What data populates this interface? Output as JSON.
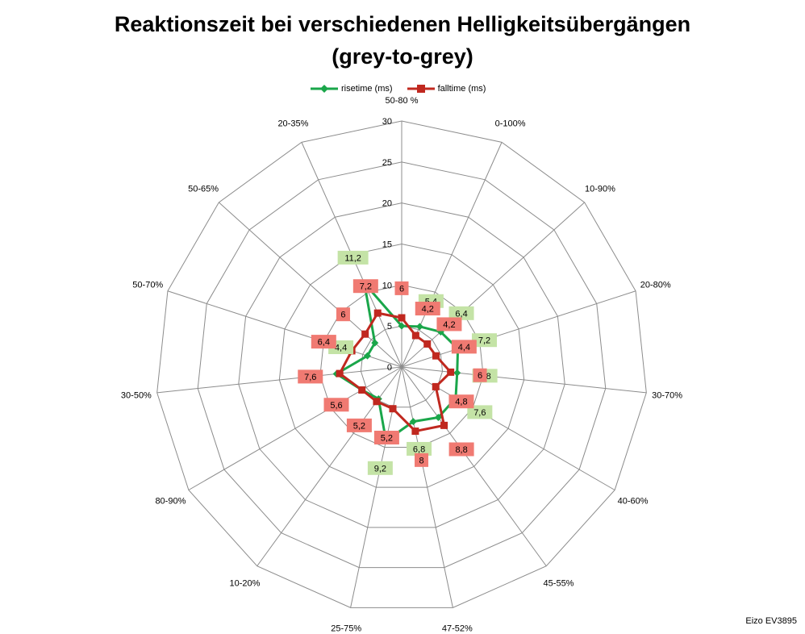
{
  "chart_data": {
    "type": "radar",
    "title": "Reaktionszeit bei verschiedenen Helligkeitsübergängen",
    "subtitle": "(grey-to-grey)",
    "categories": [
      "50-80 %",
      "0-100%",
      "10-90%",
      "20-80%",
      "30-70%",
      "40-60%",
      "45-55%",
      "47-52%",
      "25-75%",
      "10-20%",
      "80-90%",
      "30-50%",
      "50-70%",
      "50-65%",
      "20-35%"
    ],
    "rlim": [
      0,
      30
    ],
    "r_ticks": [
      "0",
      "5",
      "10",
      "15",
      "20",
      "25",
      "30"
    ],
    "grid": true,
    "legend_position": "top",
    "series": [
      {
        "name": "risetime (ms)",
        "color": "#1aa64a",
        "label_bg": "#c4e3a6",
        "values": [
          5.0,
          5.4,
          6.4,
          7.2,
          6.8,
          7.6,
          7.6,
          6.8,
          9.2,
          4.8,
          5.6,
          8.0,
          4.4,
          4.4,
          11.2
        ],
        "data_labels": [
          "",
          "5,4",
          "6,4",
          "7,2",
          "6,8",
          "7,6",
          "",
          "6,8",
          "9,2",
          "",
          "",
          "",
          "4,4",
          "",
          "11,2"
        ]
      },
      {
        "name": "falltime (ms)",
        "color": "#c0281f",
        "label_bg": "#f07a72",
        "values": [
          6.0,
          4.2,
          4.2,
          4.4,
          6.0,
          4.8,
          8.8,
          8.0,
          5.2,
          5.2,
          5.6,
          7.6,
          6.4,
          6.0,
          7.2
        ],
        "data_labels": [
          "6",
          "4,2",
          "4,2",
          "4,4",
          "6",
          "4,8",
          "8,8",
          "8",
          "5,2",
          "5,2",
          "5,6",
          "7,6",
          "6,4",
          "6",
          "7,2"
        ]
      }
    ]
  },
  "watermark": "Eizo EV3895"
}
